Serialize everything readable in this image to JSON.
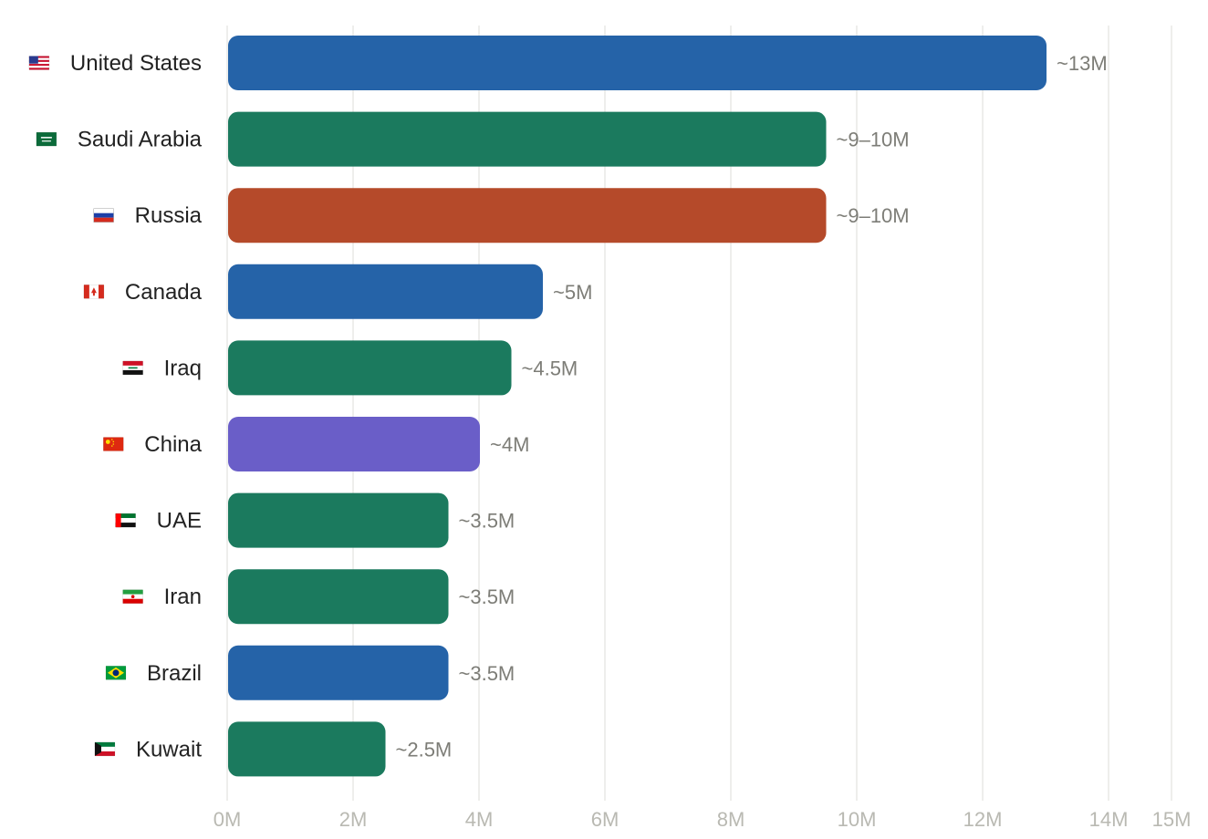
{
  "chart_data": {
    "type": "bar",
    "orientation": "horizontal",
    "categories": [
      "United States",
      "Saudi Arabia",
      "Russia",
      "Canada",
      "Iraq",
      "China",
      "UAE",
      "Iran",
      "Brazil",
      "Kuwait"
    ],
    "flags": [
      "us-flag-icon",
      "saudi-arabia-flag-icon",
      "russia-flag-icon",
      "canada-flag-icon",
      "iraq-flag-icon",
      "china-flag-icon",
      "uae-flag-icon",
      "iran-flag-icon",
      "brazil-flag-icon",
      "kuwait-flag-icon"
    ],
    "values": [
      13,
      9.5,
      9.5,
      5,
      4.5,
      4,
      3.5,
      3.5,
      3.5,
      2.5
    ],
    "value_labels": [
      "~13M",
      "~9–10M",
      "~9–10M",
      "~5M",
      "~4.5M",
      "~4M",
      "~3.5M",
      "~3.5M",
      "~3.5M",
      "~2.5M"
    ],
    "colors": [
      "#2563a8",
      "#1b7a5e",
      "#b54a2a",
      "#2563a8",
      "#1b7a5e",
      "#6a5ec8",
      "#1b7a5e",
      "#1b7a5e",
      "#2563a8",
      "#1b7a5e"
    ],
    "xticks": [
      0,
      2,
      4,
      6,
      8,
      10,
      12,
      14,
      15
    ],
    "xtick_labels": [
      "0M",
      "2M",
      "4M",
      "6M",
      "8M",
      "10M",
      "12M",
      "14M",
      "15M"
    ],
    "xlim": [
      0,
      15
    ],
    "value_unit": "millions",
    "grid": true,
    "title": "",
    "xlabel": "",
    "ylabel": ""
  }
}
